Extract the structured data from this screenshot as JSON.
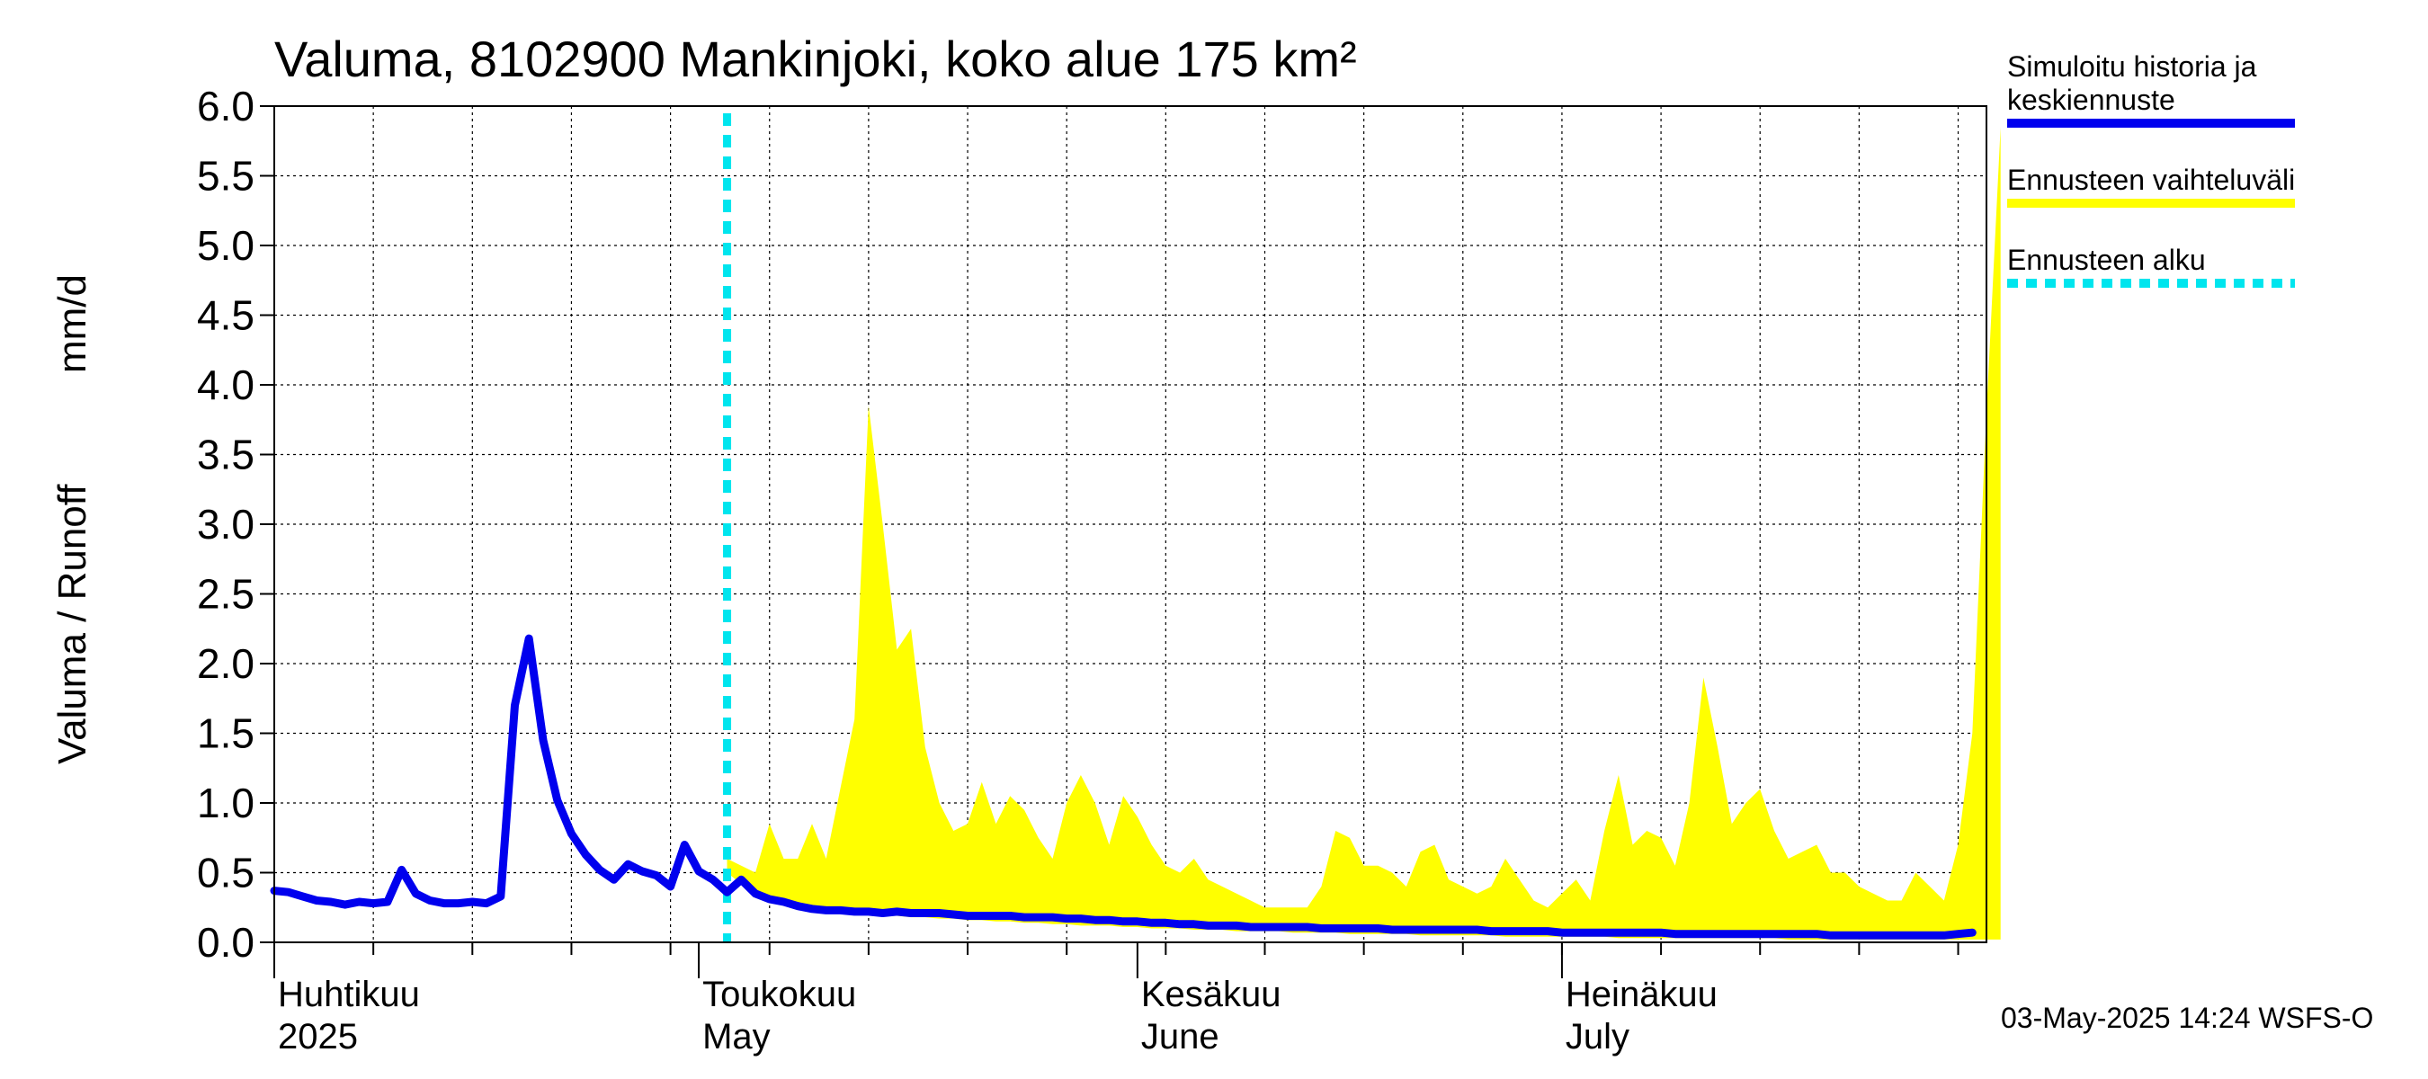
{
  "chart_data": {
    "type": "line",
    "title": "Valuma, 8102900 Mankinjoki, koko alue 175 km²",
    "ylabel_left": "Valuma / Runoff",
    "ylabel_unit": "mm/d",
    "ylim": [
      0,
      6.0
    ],
    "yticks": [
      "0.0",
      "0.5",
      "1.0",
      "1.5",
      "2.0",
      "2.5",
      "3.0",
      "3.5",
      "4.0",
      "4.5",
      "5.0",
      "5.5",
      "6.0"
    ],
    "xlim": [
      "2025-04-01",
      "2025-07-31"
    ],
    "month_labels": [
      {
        "date": "2025-04-01",
        "fi": "Huhtikuu",
        "en": "2025"
      },
      {
        "date": "2025-05-01",
        "fi": "Toukokuu",
        "en": "May"
      },
      {
        "date": "2025-06-01",
        "fi": "Kesäkuu",
        "en": "June"
      },
      {
        "date": "2025-07-01",
        "fi": "Heinäkuu",
        "en": "July"
      }
    ],
    "grid": true,
    "legend_position": "right",
    "forecast_start": "2025-05-03",
    "series": [
      {
        "name": "Simuloitu historia ja keskiennuste",
        "color": "#0000ee",
        "kind": "line",
        "start": "2025-04-01",
        "values": [
          0.37,
          0.36,
          0.33,
          0.3,
          0.29,
          0.27,
          0.29,
          0.28,
          0.29,
          0.52,
          0.35,
          0.3,
          0.28,
          0.28,
          0.29,
          0.28,
          0.33,
          1.7,
          2.18,
          1.45,
          1.02,
          0.78,
          0.63,
          0.52,
          0.45,
          0.56,
          0.51,
          0.48,
          0.4,
          0.7,
          0.51,
          0.45,
          0.36,
          0.45,
          0.35,
          0.31,
          0.29,
          0.26,
          0.24,
          0.23,
          0.23,
          0.22,
          0.22,
          0.21,
          0.22,
          0.21,
          0.21,
          0.21,
          0.2,
          0.19,
          0.19,
          0.19,
          0.19,
          0.18,
          0.18,
          0.18,
          0.17,
          0.17,
          0.16,
          0.16,
          0.15,
          0.15,
          0.14,
          0.14,
          0.13,
          0.13,
          0.12,
          0.12,
          0.12,
          0.11,
          0.11,
          0.11,
          0.11,
          0.11,
          0.1,
          0.1,
          0.1,
          0.1,
          0.1,
          0.09,
          0.09,
          0.09,
          0.09,
          0.09,
          0.09,
          0.09,
          0.08,
          0.08,
          0.08,
          0.08,
          0.08,
          0.07,
          0.07,
          0.07,
          0.07,
          0.07,
          0.07,
          0.07,
          0.07,
          0.06,
          0.06,
          0.06,
          0.06,
          0.06,
          0.06,
          0.06,
          0.06,
          0.06,
          0.06,
          0.06,
          0.05,
          0.05,
          0.05,
          0.05,
          0.05,
          0.05,
          0.05,
          0.05,
          0.05,
          0.06,
          0.07
        ]
      },
      {
        "name": "Ennusteen vaihteluväli",
        "color": "#ffff00",
        "kind": "band",
        "start": "2025-05-03",
        "upper": [
          0.6,
          0.55,
          0.5,
          0.85,
          0.6,
          0.6,
          0.85,
          0.6,
          1.1,
          1.6,
          3.85,
          3.0,
          2.1,
          2.25,
          1.4,
          1.0,
          0.8,
          0.85,
          1.15,
          0.85,
          1.05,
          0.95,
          0.75,
          0.6,
          1.0,
          1.2,
          1.0,
          0.7,
          1.05,
          0.9,
          0.7,
          0.55,
          0.5,
          0.6,
          0.45,
          0.4,
          0.35,
          0.3,
          0.25,
          0.25,
          0.25,
          0.25,
          0.4,
          0.8,
          0.75,
          0.55,
          0.55,
          0.5,
          0.4,
          0.65,
          0.7,
          0.45,
          0.4,
          0.35,
          0.4,
          0.6,
          0.45,
          0.3,
          0.25,
          0.35,
          0.45,
          0.3,
          0.8,
          1.2,
          0.7,
          0.8,
          0.75,
          0.55,
          1.0,
          1.9,
          1.4,
          0.85,
          1.0,
          1.1,
          0.8,
          0.6,
          0.65,
          0.7,
          0.5,
          0.5,
          0.4,
          0.35,
          0.3,
          0.3,
          0.5,
          0.4,
          0.3,
          0.7,
          1.5,
          3.8,
          5.85
        ],
        "lower": [
          0.5,
          0.42,
          0.35,
          0.3,
          0.27,
          0.25,
          0.23,
          0.22,
          0.21,
          0.2,
          0.2,
          0.19,
          0.19,
          0.18,
          0.18,
          0.17,
          0.17,
          0.16,
          0.16,
          0.15,
          0.15,
          0.14,
          0.14,
          0.13,
          0.13,
          0.12,
          0.12,
          0.12,
          0.11,
          0.11,
          0.1,
          0.1,
          0.1,
          0.09,
          0.09,
          0.09,
          0.08,
          0.08,
          0.08,
          0.08,
          0.07,
          0.07,
          0.07,
          0.07,
          0.06,
          0.06,
          0.06,
          0.06,
          0.06,
          0.05,
          0.05,
          0.05,
          0.05,
          0.05,
          0.05,
          0.04,
          0.04,
          0.04,
          0.04,
          0.04,
          0.04,
          0.04,
          0.04,
          0.03,
          0.03,
          0.03,
          0.03,
          0.03,
          0.03,
          0.03,
          0.03,
          0.03,
          0.03,
          0.03,
          0.03,
          0.02,
          0.02,
          0.02,
          0.02,
          0.02,
          0.02,
          0.02,
          0.02,
          0.02,
          0.02,
          0.02,
          0.02,
          0.02,
          0.02,
          0.02,
          0.02
        ]
      },
      {
        "name": "Ennusteen alku",
        "color": "#00e5ee",
        "kind": "vline",
        "date": "2025-05-03"
      }
    ]
  },
  "legend": {
    "items": [
      {
        "lines": [
          "Simuloitu historia ja",
          "keskiennuste"
        ],
        "color": "#0000ee",
        "style": "solid"
      },
      {
        "lines": [
          "Ennusteen vaihteluväli"
        ],
        "color": "#ffff00",
        "style": "solid"
      },
      {
        "lines": [
          "Ennusteen alku"
        ],
        "color": "#00e5ee",
        "style": "dashed"
      }
    ]
  },
  "footer": "03-May-2025 14:24 WSFS-O"
}
